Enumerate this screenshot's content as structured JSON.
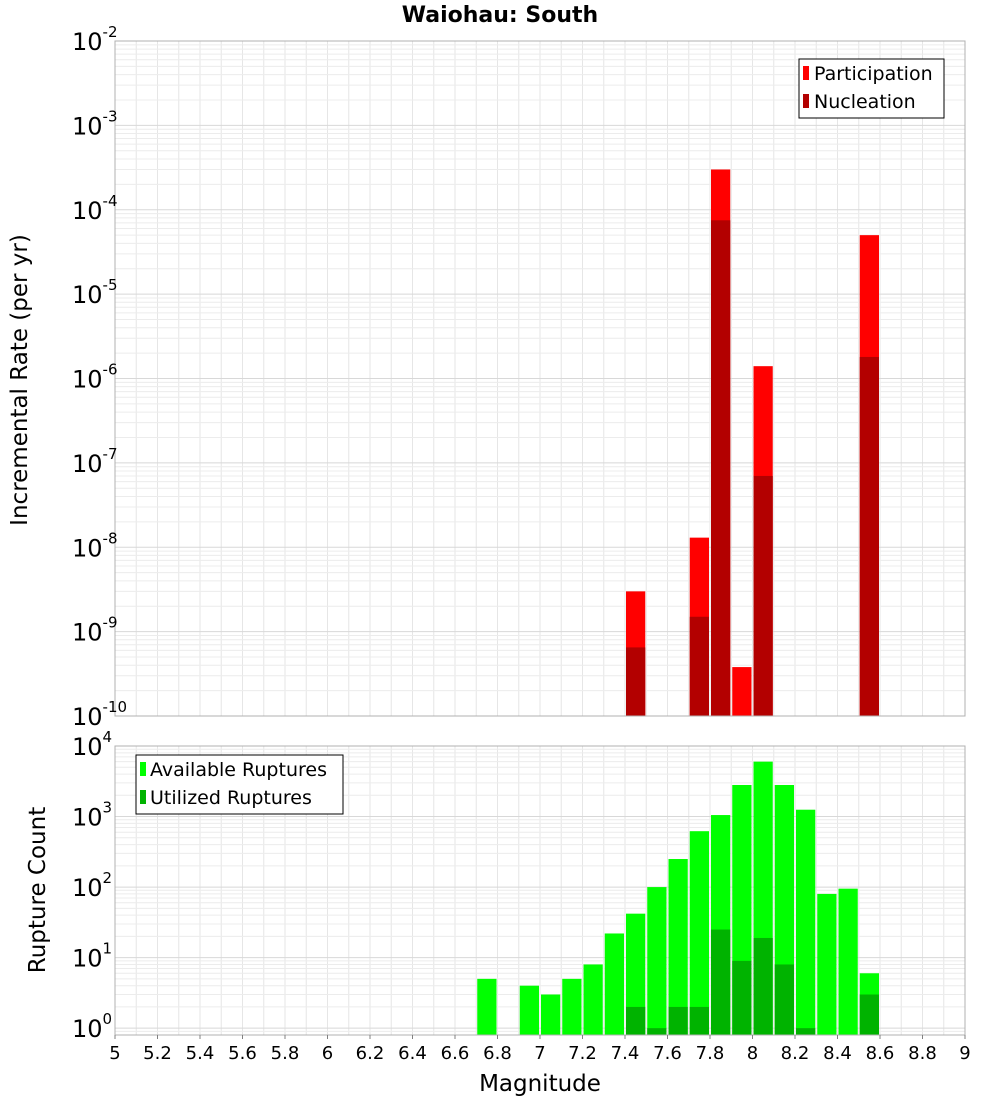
{
  "chart_data": [
    {
      "type": "bar",
      "title": "Waiohau: South",
      "ylabel": "Incremental Rate (per yr)",
      "xlim": [
        5,
        9
      ],
      "ylim": [
        1e-10,
        0.01
      ],
      "yscale": "log",
      "bin_width": 0.1,
      "grid": true,
      "legend_position": "top-right",
      "series": [
        {
          "name": "Participation",
          "color": "#ff0000",
          "points": [
            {
              "x": 7.45,
              "y": 3e-09
            },
            {
              "x": 7.75,
              "y": 1.3e-08
            },
            {
              "x": 7.85,
              "y": 0.0003
            },
            {
              "x": 7.95,
              "y": 3.8e-10
            },
            {
              "x": 8.05,
              "y": 1.4e-06
            },
            {
              "x": 8.55,
              "y": 5e-05
            }
          ]
        },
        {
          "name": "Nucleation",
          "color": "#b30000",
          "points": [
            {
              "x": 7.45,
              "y": 6.5e-10
            },
            {
              "x": 7.75,
              "y": 1.5e-09
            },
            {
              "x": 7.85,
              "y": 7.5e-05
            },
            {
              "x": 8.05,
              "y": 7e-08
            },
            {
              "x": 8.55,
              "y": 1.8e-06
            }
          ]
        }
      ]
    },
    {
      "type": "bar",
      "xlabel": "Magnitude",
      "ylabel": "Rupture Count",
      "xlim": [
        5,
        9
      ],
      "ylim": [
        0.8,
        10000
      ],
      "yscale": "log",
      "bin_width": 0.1,
      "grid": true,
      "legend_position": "top-left",
      "xticks": [
        "5",
        "5.2",
        "5.4",
        "5.6",
        "5.8",
        "6",
        "6.2",
        "6.4",
        "6.6",
        "6.8",
        "7",
        "7.2",
        "7.4",
        "7.6",
        "7.8",
        "8",
        "8.2",
        "8.4",
        "8.6",
        "8.8",
        "9"
      ],
      "series": [
        {
          "name": "Available Ruptures",
          "color": "#00ff00",
          "points": [
            {
              "x": 6.75,
              "y": 5
            },
            {
              "x": 6.95,
              "y": 4
            },
            {
              "x": 7.05,
              "y": 3
            },
            {
              "x": 7.15,
              "y": 5
            },
            {
              "x": 7.25,
              "y": 8
            },
            {
              "x": 7.35,
              "y": 22
            },
            {
              "x": 7.45,
              "y": 42
            },
            {
              "x": 7.55,
              "y": 100
            },
            {
              "x": 7.65,
              "y": 250
            },
            {
              "x": 7.75,
              "y": 620
            },
            {
              "x": 7.85,
              "y": 1050
            },
            {
              "x": 7.95,
              "y": 2800
            },
            {
              "x": 8.05,
              "y": 6000
            },
            {
              "x": 8.15,
              "y": 2800
            },
            {
              "x": 8.25,
              "y": 1250
            },
            {
              "x": 8.35,
              "y": 80
            },
            {
              "x": 8.45,
              "y": 95
            },
            {
              "x": 8.55,
              "y": 6
            }
          ]
        },
        {
          "name": "Utilized Ruptures",
          "color": "#00b300",
          "points": [
            {
              "x": 7.45,
              "y": 2
            },
            {
              "x": 7.55,
              "y": 1
            },
            {
              "x": 7.65,
              "y": 2
            },
            {
              "x": 7.75,
              "y": 2
            },
            {
              "x": 7.85,
              "y": 25
            },
            {
              "x": 7.95,
              "y": 9
            },
            {
              "x": 8.05,
              "y": 19
            },
            {
              "x": 8.15,
              "y": 8
            },
            {
              "x": 8.25,
              "y": 1
            },
            {
              "x": 8.55,
              "y": 3
            }
          ]
        }
      ]
    }
  ]
}
